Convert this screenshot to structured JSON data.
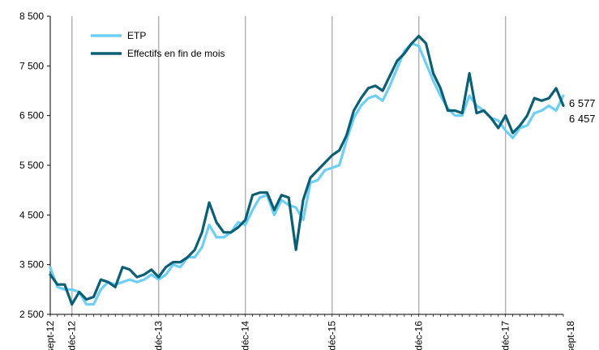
{
  "chart_data": {
    "type": "line",
    "title": "",
    "xlabel": "",
    "ylabel": "",
    "ylim": [
      2500,
      8500
    ],
    "yticks": [
      "2 500",
      "3 500",
      "4 500",
      "5 500",
      "6 500",
      "7 500",
      "8 500"
    ],
    "ytick_values": [
      2500,
      3500,
      4500,
      5500,
      6500,
      7500,
      8500
    ],
    "x_start": "sept-12",
    "x_end": "sept-18",
    "xtick_labels": [
      {
        "label": "sept-12",
        "index": 0
      },
      {
        "label": "déc-12",
        "index": 3
      },
      {
        "label": "déc-13",
        "index": 15
      },
      {
        "label": "déc-14",
        "index": 27
      },
      {
        "label": "déc-15",
        "index": 39
      },
      {
        "label": "déc-16",
        "index": 51
      },
      {
        "label": "déc-17",
        "index": 63
      },
      {
        "label": "sept-18",
        "index": 72
      }
    ],
    "vertical_gridlines_at": [
      3,
      15,
      27,
      39,
      51,
      63
    ],
    "horizontal_grid": false,
    "legend_position": "top-left",
    "series": [
      {
        "name": "ETP",
        "color": "#6ecff6",
        "values": [
          3440,
          3050,
          3000,
          3000,
          2950,
          2700,
          2700,
          3000,
          3150,
          3100,
          3150,
          3200,
          3150,
          3200,
          3300,
          3200,
          3300,
          3500,
          3450,
          3650,
          3650,
          3850,
          4300,
          4050,
          4050,
          4150,
          4350,
          4300,
          4600,
          4850,
          4900,
          4500,
          4800,
          4700,
          4650,
          4400,
          5150,
          5200,
          5400,
          5450,
          5500,
          6000,
          6450,
          6700,
          6850,
          6900,
          6800,
          7100,
          7450,
          7800,
          7950,
          7900,
          7550,
          7200,
          6900,
          6650,
          6500,
          6500,
          6900,
          6700,
          6600,
          6450,
          6400,
          6200,
          6050,
          6250,
          6300,
          6550,
          6600,
          6700,
          6600,
          6900
        ],
        "end_label": "6 457",
        "end_value": 6457
      },
      {
        "name": "Effectifs en fin de mois",
        "color": "#0a5f75",
        "values": [
          3300,
          3100,
          3100,
          2700,
          2950,
          2800,
          2850,
          3200,
          3150,
          3050,
          3450,
          3400,
          3250,
          3300,
          3400,
          3250,
          3450,
          3550,
          3550,
          3650,
          3800,
          4150,
          4750,
          4350,
          4150,
          4150,
          4250,
          4400,
          4900,
          4950,
          4950,
          4600,
          4900,
          4850,
          3800,
          4800,
          5250,
          5400,
          5550,
          5700,
          5800,
          6100,
          6600,
          6850,
          7050,
          7100,
          7000,
          7300,
          7600,
          7750,
          7950,
          8100,
          7950,
          7350,
          7050,
          6600,
          6600,
          6550,
          7350,
          6550,
          6600,
          6450,
          6250,
          6500,
          6150,
          6300,
          6500,
          6850,
          6800,
          6850,
          7050,
          6700
        ],
        "end_label": "6 577",
        "end_value": 6577
      }
    ]
  }
}
